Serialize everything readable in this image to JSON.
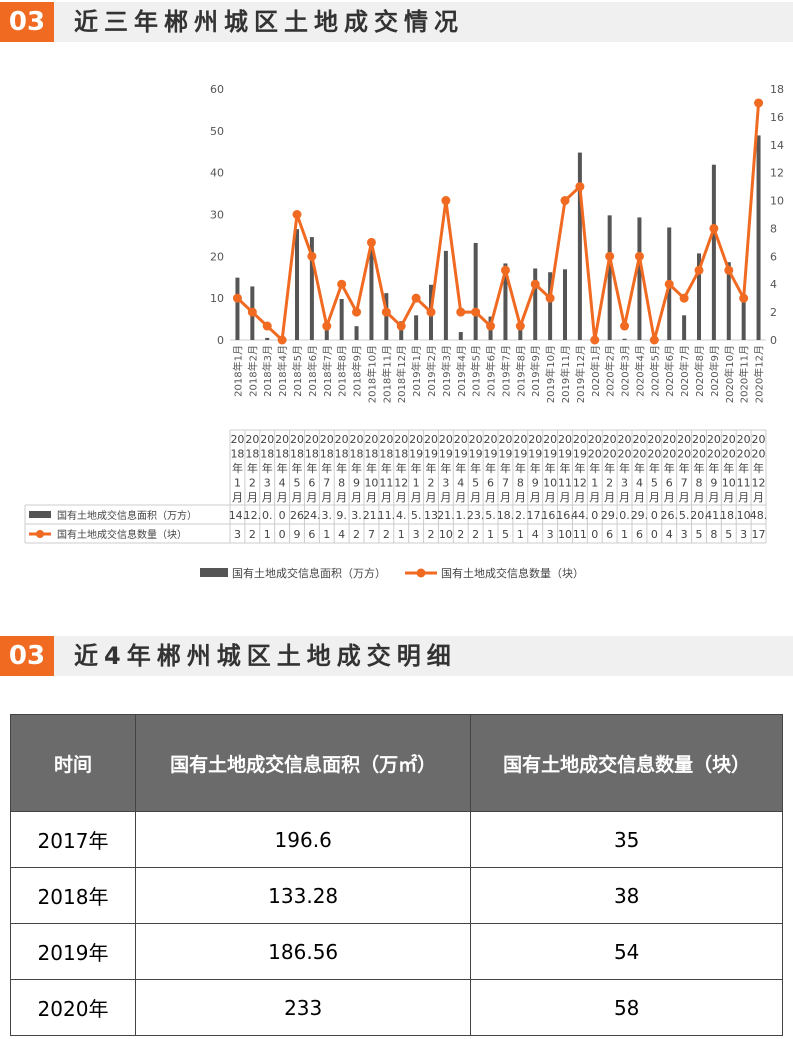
{
  "section1": {
    "number": "03",
    "title": "近三年郴州城区土地成交情况"
  },
  "section2": {
    "number": "03",
    "title": "近4年郴州城区土地成交明细"
  },
  "chart_data": {
    "type": "bar+line",
    "categories": [
      "2018年1月",
      "2018年2月",
      "2018年3月",
      "2018年4月",
      "2018年5月",
      "2018年6月",
      "2018年7月",
      "2018年8月",
      "2018年9月",
      "2018年10月",
      "2018年11月",
      "2018年12月",
      "2019年1月",
      "2019年2月",
      "2019年3月",
      "2019年4月",
      "2019年5月",
      "2019年6月",
      "2019年7月",
      "2019年8月",
      "2019年9月",
      "2019年10月",
      "2019年11月",
      "2019年12月",
      "2020年1月",
      "2020年2月",
      "2020年3月",
      "2020年4月",
      "2020年5月",
      "2020年6月",
      "2020年7月",
      "2020年8月",
      "2020年9月",
      "2020年10月",
      "2020年11月",
      "2020年12月"
    ],
    "table_columns": [
      [
        "20",
        "18",
        "年",
        "1",
        "月"
      ],
      [
        "20",
        "18",
        "年",
        "2",
        "月"
      ],
      [
        "20",
        "18",
        "年",
        "3",
        "月"
      ],
      [
        "20",
        "18",
        "年",
        "4",
        "月"
      ],
      [
        "20",
        "18",
        "年",
        "5",
        "月"
      ],
      [
        "20",
        "18",
        "年",
        "6",
        "月"
      ],
      [
        "20",
        "18",
        "年",
        "7",
        "月"
      ],
      [
        "20",
        "18",
        "年",
        "8",
        "月"
      ],
      [
        "20",
        "18",
        "年",
        "9",
        "月"
      ],
      [
        "20",
        "18",
        "年",
        "10",
        "月"
      ],
      [
        "20",
        "18",
        "年",
        "11",
        "月"
      ],
      [
        "20",
        "18",
        "年",
        "12",
        "月"
      ],
      [
        "20",
        "19",
        "年",
        "1",
        "月"
      ],
      [
        "20",
        "19",
        "年",
        "2",
        "月"
      ],
      [
        "20",
        "19",
        "年",
        "3",
        "月"
      ],
      [
        "20",
        "19",
        "年",
        "4",
        "月"
      ],
      [
        "20",
        "19",
        "年",
        "5",
        "月"
      ],
      [
        "20",
        "19",
        "年",
        "6",
        "月"
      ],
      [
        "20",
        "19",
        "年",
        "7",
        "月"
      ],
      [
        "20",
        "19",
        "年",
        "8",
        "月"
      ],
      [
        "20",
        "19",
        "年",
        "9",
        "月"
      ],
      [
        "20",
        "19",
        "年",
        "10",
        "月"
      ],
      [
        "20",
        "19",
        "年",
        "11",
        "月"
      ],
      [
        "20",
        "19",
        "年",
        "12",
        "月"
      ],
      [
        "20",
        "20",
        "年",
        "1",
        "月"
      ],
      [
        "20",
        "20",
        "年",
        "2",
        "月"
      ],
      [
        "20",
        "20",
        "年",
        "3",
        "月"
      ],
      [
        "20",
        "20",
        "年",
        "4",
        "月"
      ],
      [
        "20",
        "20",
        "年",
        "5",
        "月"
      ],
      [
        "20",
        "20",
        "年",
        "6",
        "月"
      ],
      [
        "20",
        "20",
        "年",
        "7",
        "月"
      ],
      [
        "20",
        "20",
        "年",
        "8",
        "月"
      ],
      [
        "20",
        "20",
        "年",
        "9",
        "月"
      ],
      [
        "20",
        "20",
        "年",
        "10",
        "月"
      ],
      [
        "20",
        "20",
        "年",
        "11",
        "月"
      ],
      [
        "20",
        "20",
        "年",
        "12",
        "月"
      ]
    ],
    "series": [
      {
        "name": "国有土地成交信息面积（万方）",
        "type": "bar",
        "axis": "left",
        "color": "#555555",
        "values": [
          14.9,
          12.8,
          0.5,
          0,
          26.5,
          24.6,
          3.2,
          9.8,
          3.3,
          21.8,
          11.2,
          4.5,
          5.9,
          13.2,
          21.3,
          1.9,
          23.2,
          5.6,
          18.3,
          2.6,
          17.1,
          16.2,
          16.9,
          44.8,
          0,
          29.8,
          0.3,
          29.3,
          0,
          26.9,
          5.9,
          20.7,
          41.9,
          18.6,
          10.5,
          48.9
        ],
        "table_labels": [
          "14.",
          "12.",
          "0.",
          "0",
          "26",
          "24.",
          "3.",
          "9.",
          "3.",
          "21.",
          "11.",
          "4.",
          "5.",
          "13",
          "21.",
          "1.",
          "23.",
          "5.",
          "18.",
          "2.",
          "17.",
          "16.",
          "16.",
          "44.",
          "0",
          "29.",
          "0.",
          "29.",
          "0",
          "26.",
          "5.",
          "20.",
          "41.",
          "18.",
          "10",
          "48."
        ]
      },
      {
        "name": "国有土地成交信息数量（块）",
        "type": "line",
        "axis": "right",
        "color": "#f06a22",
        "values": [
          3,
          2,
          1,
          0,
          9,
          6,
          1,
          4,
          2,
          7,
          2,
          1,
          3,
          2,
          10,
          2,
          2,
          1,
          5,
          1,
          4,
          3,
          10,
          11,
          0,
          6,
          1,
          6,
          0,
          4,
          3,
          5,
          8,
          5,
          3,
          17
        ]
      }
    ],
    "y_left": {
      "range": [
        0,
        60
      ],
      "ticks": [
        "0",
        "10",
        "20",
        "30",
        "40",
        "50",
        "60"
      ]
    },
    "y_right": {
      "range": [
        0,
        18
      ],
      "ticks": [
        "0",
        "2",
        "4",
        "6",
        "8",
        "10",
        "12",
        "14",
        "16",
        "18"
      ]
    },
    "legend": "bottom",
    "grid": false
  },
  "table": {
    "headers": [
      "时间",
      "国有土地成交信息面积（万㎡）",
      "国有土地成交信息数量（块）"
    ],
    "rows": [
      [
        "2017年",
        "196.6",
        "35"
      ],
      [
        "2018年",
        "133.28",
        "38"
      ],
      [
        "2019年",
        "186.56",
        "54"
      ],
      [
        "2020年",
        "233",
        "58"
      ]
    ]
  }
}
